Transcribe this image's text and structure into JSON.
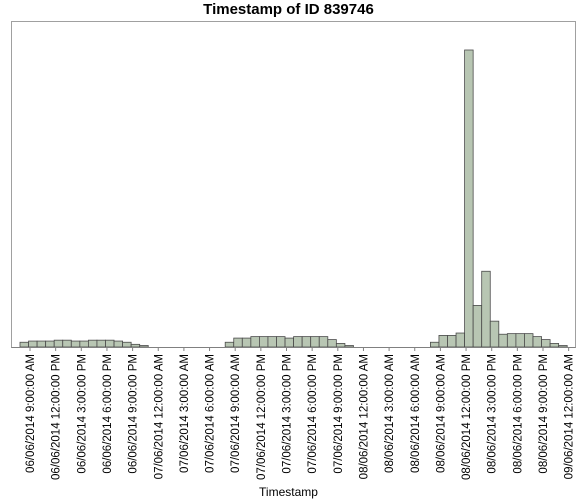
{
  "chart_data": {
    "type": "bar",
    "title": "Timestamp of ID 839746",
    "xlabel": "Timestamp",
    "ylabel": "",
    "grid": false,
    "legend": "none",
    "bar_color": "#b8c6b3",
    "bar_edge_color": "#4a4a4a",
    "frame_color": "#a0a0a0",
    "x_tick_labels": [
      "06/06/2014 9:00:00 AM",
      "06/06/2014 12:00:00 PM",
      "06/06/2014 3:00:00 PM",
      "06/06/2014 6:00:00 PM",
      "06/06/2014 9:00:00 PM",
      "07/06/2014 12:00:00 AM",
      "07/06/2014 3:00:00 AM",
      "07/06/2014 6:00:00 AM",
      "07/06/2014 9:00:00 AM",
      "07/06/2014 12:00:00 PM",
      "07/06/2014 3:00:00 PM",
      "07/06/2014 6:00:00 PM",
      "07/06/2014 9:00:00 PM",
      "08/06/2014 12:00:00 AM",
      "08/06/2014 3:00:00 AM",
      "08/06/2014 6:00:00 AM",
      "08/06/2014 9:00:00 AM",
      "08/06/2014 12:00:00 PM",
      "08/06/2014 3:00:00 PM",
      "08/06/2014 6:00:00 PM",
      "08/06/2014 9:00:00 PM",
      "09/06/2014 12:00:00 AM"
    ],
    "bin_hours": 1,
    "values": [
      1.6,
      2.0,
      2.0,
      2.0,
      2.3,
      2.3,
      2.0,
      2.0,
      2.3,
      2.3,
      2.3,
      2.0,
      1.6,
      0.9,
      0.5,
      0,
      0,
      0,
      0,
      0,
      0,
      0,
      0,
      0,
      1.6,
      3.0,
      3.0,
      3.5,
      3.5,
      3.5,
      3.5,
      3.0,
      3.5,
      3.5,
      3.5,
      3.5,
      2.5,
      1.2,
      0.5,
      0,
      0,
      0,
      0,
      0,
      0,
      0,
      0,
      0,
      1.6,
      3.9,
      3.9,
      4.7,
      100,
      14.0,
      25.5,
      8.7,
      4.3,
      4.5,
      4.5,
      4.5,
      3.5,
      2.5,
      1.2,
      0.5
    ],
    "ylim": [
      0,
      100
    ]
  }
}
